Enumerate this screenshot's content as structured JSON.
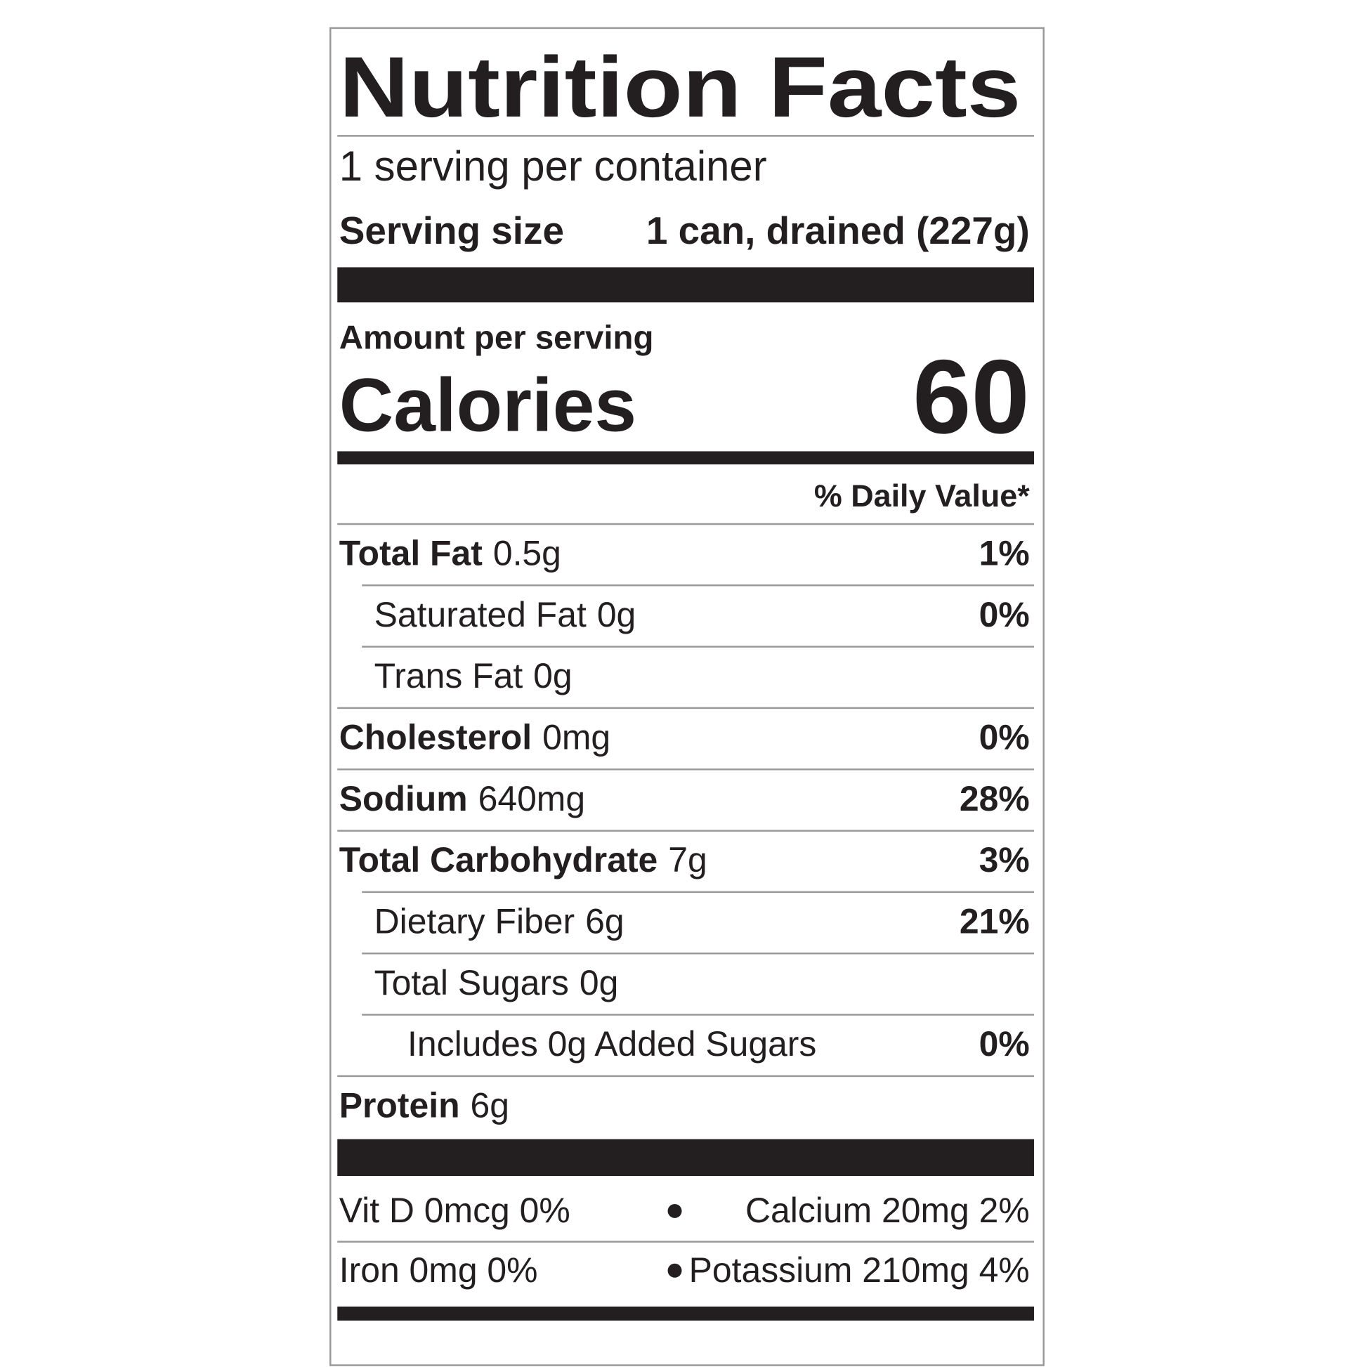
{
  "title": "Nutrition Facts",
  "servings": "1 serving per container",
  "serving_size": {
    "label": "Serving size",
    "value": "1 can, drained (227g)"
  },
  "amount_per_serving": "Amount per serving",
  "calories": {
    "label": "Calories",
    "value": 60
  },
  "daily_value_header": "% Daily Value*",
  "nutrients": [
    {
      "name": "Total Fat",
      "amount": "0.5g",
      "dv": "1%",
      "indent": 0
    },
    {
      "name": "Saturated Fat",
      "amount": "0g",
      "dv": "0%",
      "indent": 1
    },
    {
      "name": "Trans Fat",
      "amount": "0g",
      "dv": null,
      "indent": 1
    },
    {
      "name": "Cholesterol",
      "amount": "0mg",
      "dv": "0%",
      "indent": 0
    },
    {
      "name": "Sodium",
      "amount": "640mg",
      "dv": "28%",
      "indent": 0
    },
    {
      "name": "Total Carbohydrate",
      "amount": "7g",
      "dv": "3%",
      "indent": 0
    },
    {
      "name": "Dietary Fiber",
      "amount": "6g",
      "dv": "21%",
      "indent": 1
    },
    {
      "name": "Total Sugars",
      "amount": "0g",
      "dv": null,
      "indent": 1
    },
    {
      "name": "Includes 0g Added Sugars",
      "amount": null,
      "dv": "0%",
      "indent": 2
    },
    {
      "name": "Protein",
      "amount": "6g",
      "dv": null,
      "indent": 0
    }
  ],
  "minerals": [
    [
      "Vit D 0mcg 0%",
      "Calcium 20mg 2%"
    ],
    [
      "Iron 0mg 0%",
      "Potassium 210mg 4%"
    ]
  ]
}
